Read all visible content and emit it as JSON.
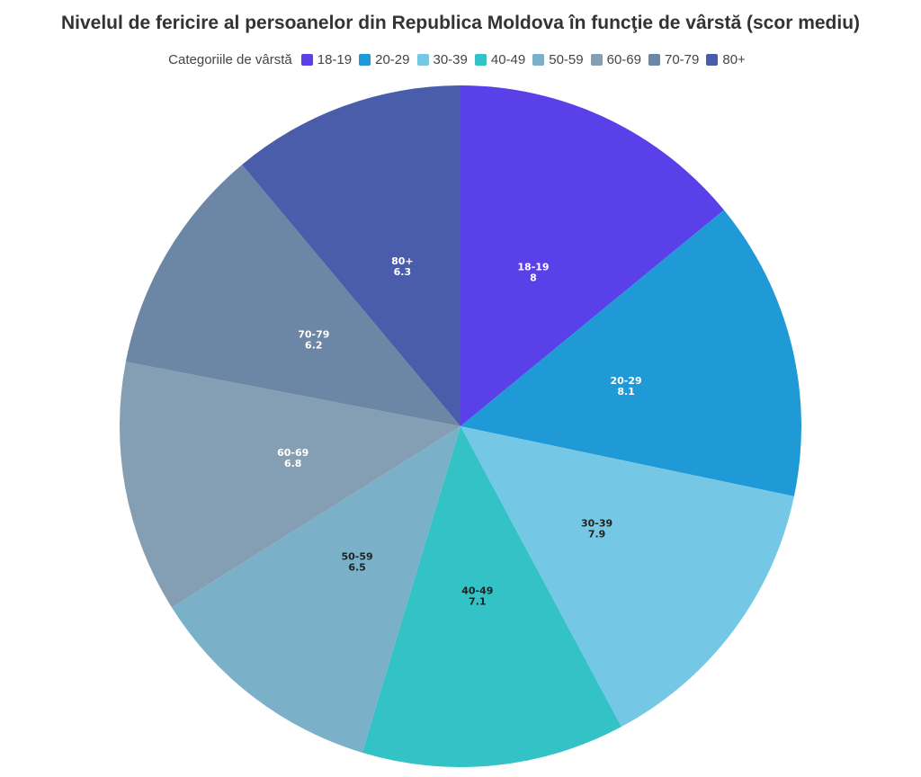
{
  "chart_data": {
    "type": "pie",
    "title": "Nivelul de fericire al persoanelor din Republica Moldova în funcţie de vârstă (scor mediu)",
    "legend_title": "Categoriile de vârstă",
    "legend_position": "top",
    "categories": [
      "18-19",
      "20-29",
      "30-39",
      "40-49",
      "50-59",
      "60-69",
      "70-79",
      "80+"
    ],
    "values": [
      8,
      8.1,
      7.9,
      7.1,
      6.5,
      6.8,
      6.2,
      6.3
    ],
    "colors": [
      "#5a40e8",
      "#1f9ad6",
      "#74c8e6",
      "#33c2c6",
      "#7ab1c8",
      "#849fb4",
      "#6c86a6",
      "#4a5dab"
    ],
    "label_colors": [
      "#ffffff",
      "#ffffff",
      "#222222",
      "#222222",
      "#222222",
      "#ffffff",
      "#ffffff",
      "#ffffff"
    ]
  }
}
